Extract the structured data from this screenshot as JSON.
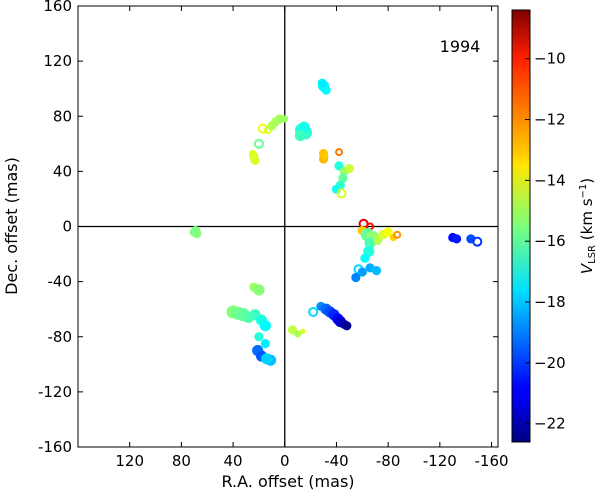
{
  "chart_data": {
    "type": "scatter",
    "annotation": "1994",
    "xlabel": "R.A. offset (mas)",
    "ylabel": "Dec. offset (mas)",
    "xlim": [
      160,
      -165
    ],
    "ylim": [
      -160,
      160
    ],
    "x_ticks": [
      120,
      80,
      40,
      0,
      -40,
      -80,
      -120,
      -160
    ],
    "y_ticks": [
      160,
      120,
      80,
      40,
      0,
      -40,
      -80,
      -120,
      -160
    ],
    "reference_lines": {
      "x": 0,
      "y": 0
    },
    "colorbar": {
      "label_main": "V",
      "label_sub": "LSR",
      "label_unit_prefix": " (km s",
      "label_unit_exp": "−1",
      "label_unit_suffix": ")",
      "range": [
        -22.6,
        -8.4
      ],
      "ticks": [
        -10,
        -12,
        -14,
        -16,
        -18,
        -20,
        -22
      ],
      "tick_labels": [
        "−10",
        "−12",
        "−14",
        "−16",
        "−18",
        "−20",
        "−22"
      ],
      "colormap": "jet"
    },
    "points": [
      {
        "x": 69,
        "y": -3,
        "v": -15.5,
        "r": 4
      },
      {
        "x": 68,
        "y": -5,
        "v": -15.3,
        "r": 4
      },
      {
        "x": 70,
        "y": -4,
        "v": -15.6,
        "r": 4
      },
      {
        "x": 68,
        "y": -6,
        "v": -15.4,
        "r": 3
      },
      {
        "x": 24,
        "y": 51,
        "v": -14.2,
        "r": 4
      },
      {
        "x": 23,
        "y": 48,
        "v": -14.3,
        "r": 4
      },
      {
        "x": 25,
        "y": 53,
        "v": -14.1,
        "r": 3
      },
      {
        "x": 20,
        "y": 60,
        "v": -15.8,
        "r": 4,
        "hollow": true
      },
      {
        "x": 17,
        "y": 71,
        "v": -14.0,
        "r": 4,
        "hollow": true
      },
      {
        "x": 13,
        "y": 70,
        "v": -14.3,
        "r": 3,
        "hollow": true
      },
      {
        "x": 10,
        "y": 73,
        "v": -14.8,
        "r": 4
      },
      {
        "x": 7,
        "y": 76,
        "v": -14.9,
        "r": 4
      },
      {
        "x": 4,
        "y": 78,
        "v": -15.0,
        "r": 4
      },
      {
        "x": 0,
        "y": 78,
        "v": -15.1,
        "r": 3
      },
      {
        "x": -13,
        "y": 70,
        "v": -16.8,
        "r": 6
      },
      {
        "x": -16,
        "y": 68,
        "v": -16.6,
        "r": 6
      },
      {
        "x": -15,
        "y": 72,
        "v": -17.0,
        "r": 5
      },
      {
        "x": -12,
        "y": 66,
        "v": -16.4,
        "r": 5
      },
      {
        "x": -30,
        "y": 102,
        "v": -17.4,
        "r": 5
      },
      {
        "x": -32,
        "y": 99,
        "v": -17.3,
        "r": 4
      },
      {
        "x": -29,
        "y": 104,
        "v": -17.5,
        "r": 4
      },
      {
        "x": -30,
        "y": 53,
        "v": -12.9,
        "r": 4
      },
      {
        "x": -30,
        "y": 49,
        "v": -12.7,
        "r": 4
      },
      {
        "x": -31,
        "y": 51,
        "v": -13.0,
        "r": 3
      },
      {
        "x": -42,
        "y": 54,
        "v": -11.8,
        "r": 3,
        "hollow": true
      },
      {
        "x": -42,
        "y": 44,
        "v": -16.8,
        "r": 4
      },
      {
        "x": -46,
        "y": 40,
        "v": -15.2,
        "r": 4
      },
      {
        "x": -50,
        "y": 42,
        "v": -14.5,
        "r": 4
      },
      {
        "x": -45,
        "y": 35,
        "v": -15.9,
        "r": 4
      },
      {
        "x": -43,
        "y": 30,
        "v": -16.6,
        "r": 4
      },
      {
        "x": -40,
        "y": 27,
        "v": -17.1,
        "r": 4
      },
      {
        "x": -44,
        "y": 24,
        "v": -14.3,
        "r": 4,
        "hollow": true
      },
      {
        "x": -61,
        "y": 2,
        "v": -9.8,
        "r": 4,
        "hollow": true
      },
      {
        "x": -66,
        "y": 0,
        "v": -10.3,
        "r": 3,
        "hollow": true
      },
      {
        "x": -60,
        "y": -3,
        "v": -13.0,
        "r": 4
      },
      {
        "x": -64,
        "y": -6,
        "v": -15.9,
        "r": 6
      },
      {
        "x": -68,
        "y": -8,
        "v": -15.3,
        "r": 6
      },
      {
        "x": -66,
        "y": -12,
        "v": -16.2,
        "r": 5
      },
      {
        "x": -72,
        "y": -10,
        "v": -14.8,
        "r": 4
      },
      {
        "x": -76,
        "y": -6,
        "v": -14.2,
        "r": 4
      },
      {
        "x": -80,
        "y": -4,
        "v": -13.8,
        "r": 4
      },
      {
        "x": -84,
        "y": -8,
        "v": -13.1,
        "r": 3
      },
      {
        "x": -87,
        "y": -6,
        "v": -12.2,
        "r": 3,
        "hollow": true
      },
      {
        "x": -65,
        "y": -18,
        "v": -16.8,
        "r": 5
      },
      {
        "x": -62,
        "y": -23,
        "v": -17.2,
        "r": 4
      },
      {
        "x": -57,
        "y": -31,
        "v": -17.8,
        "r": 4,
        "hollow": true
      },
      {
        "x": -55,
        "y": -37,
        "v": -19.0,
        "r": 4
      },
      {
        "x": -60,
        "y": -33,
        "v": -18.6,
        "r": 4
      },
      {
        "x": -66,
        "y": -30,
        "v": -18.4,
        "r": 4
      },
      {
        "x": -71,
        "y": -32,
        "v": -18.2,
        "r": 4
      },
      {
        "x": -130,
        "y": -8,
        "v": -20.7,
        "r": 4
      },
      {
        "x": -133,
        "y": -9,
        "v": -20.5,
        "r": 4
      },
      {
        "x": -144,
        "y": -9,
        "v": -19.8,
        "r": 4
      },
      {
        "x": -149,
        "y": -11,
        "v": -20.1,
        "r": 4,
        "hollow": true
      },
      {
        "x": 40,
        "y": -62,
        "v": -15.4,
        "r": 6
      },
      {
        "x": 36,
        "y": -63,
        "v": -15.7,
        "r": 6
      },
      {
        "x": 32,
        "y": -64,
        "v": -15.9,
        "r": 6
      },
      {
        "x": 28,
        "y": -66,
        "v": -16.1,
        "r": 5
      },
      {
        "x": 23,
        "y": -64,
        "v": -16.4,
        "r": 5
      },
      {
        "x": 18,
        "y": -68,
        "v": -16.9,
        "r": 5
      },
      {
        "x": 15,
        "y": -72,
        "v": -17.3,
        "r": 5
      },
      {
        "x": 20,
        "y": -80,
        "v": -16.8,
        "r": 4
      },
      {
        "x": 15,
        "y": -85,
        "v": -17.5,
        "r": 4
      },
      {
        "x": 24,
        "y": -44,
        "v": -15.1,
        "r": 4
      },
      {
        "x": 20,
        "y": -46,
        "v": -15.4,
        "r": 5
      },
      {
        "x": 21,
        "y": -90,
        "v": -19.3,
        "r": 5
      },
      {
        "x": 18,
        "y": -94,
        "v": -19.6,
        "r": 5
      },
      {
        "x": 11,
        "y": -97,
        "v": -18.2,
        "r": 5
      },
      {
        "x": 14,
        "y": -96,
        "v": -17.9,
        "r": 5
      },
      {
        "x": -6,
        "y": -75,
        "v": -14.6,
        "r": 4
      },
      {
        "x": -10,
        "y": -78,
        "v": -14.9,
        "r": 3
      },
      {
        "x": -14,
        "y": -76,
        "v": -14.2,
        "r": 2
      },
      {
        "x": -22,
        "y": -62,
        "v": -17.8,
        "r": 4,
        "hollow": true
      },
      {
        "x": -28,
        "y": -58,
        "v": -18.9,
        "r": 4
      },
      {
        "x": -32,
        "y": -60,
        "v": -19.4,
        "r": 5
      },
      {
        "x": -35,
        "y": -62,
        "v": -19.8,
        "r": 5
      },
      {
        "x": -38,
        "y": -64,
        "v": -20.3,
        "r": 5
      },
      {
        "x": -41,
        "y": -67,
        "v": -20.8,
        "r": 5
      },
      {
        "x": -43,
        "y": -69,
        "v": -21.4,
        "r": 5
      },
      {
        "x": -46,
        "y": -71,
        "v": -21.9,
        "r": 4
      },
      {
        "x": -48,
        "y": -72,
        "v": -22.4,
        "r": 4
      }
    ]
  }
}
